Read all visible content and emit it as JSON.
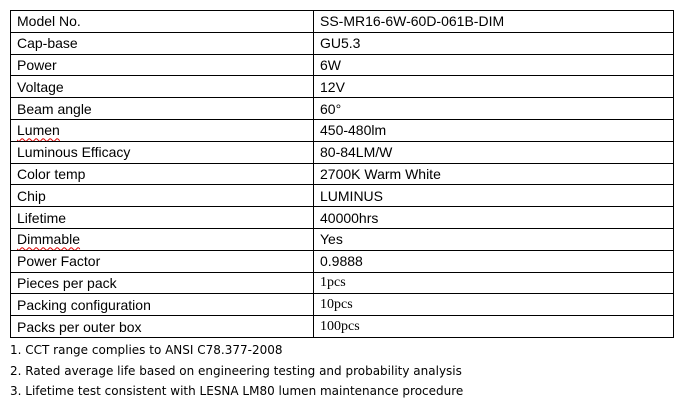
{
  "table": {
    "rows": [
      [
        "Model No.",
        "SS-MR16-6W-60D-061B-DIM"
      ],
      [
        "Cap-base",
        "GU5.3"
      ],
      [
        "Power",
        "6W"
      ],
      [
        "Voltage",
        "12V"
      ],
      [
        "Beam angle",
        "60°"
      ],
      [
        "Lumen",
        "450-480lm"
      ],
      [
        "Luminous Efficacy",
        "80-84LM/W"
      ],
      [
        "Color temp",
        "2700K Warm White"
      ],
      [
        "Chip",
        "LUMINUS"
      ],
      [
        "Lifetime",
        "40000hrs"
      ],
      [
        "Dimmable",
        "Yes"
      ],
      [
        "Power Factor",
        "0.9888"
      ],
      [
        "Pieces per pack",
        "1pcs"
      ],
      [
        "Packing configuration",
        "10pcs"
      ],
      [
        "Packs per outer box",
        "100pcs"
      ]
    ]
  },
  "notes": [
    "1. CCT range complies to ANSI C78.377-2008",
    "2. Rated average life based on engineering testing and probability analysis",
    "3. Lifetime test consistent with LESNA LM80 lumen maintenance procedure"
  ]
}
